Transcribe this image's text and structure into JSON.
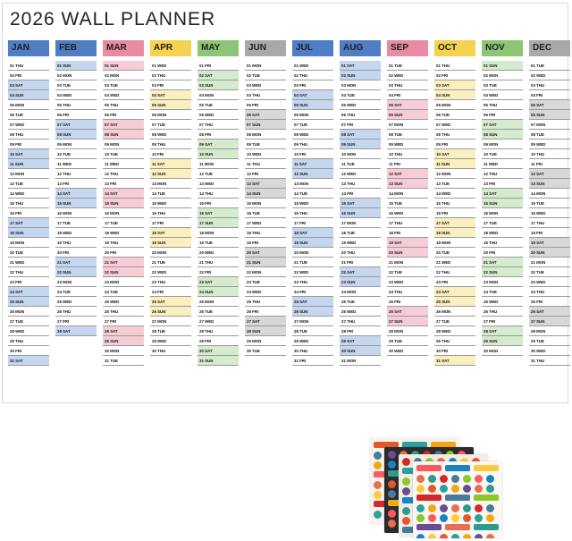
{
  "title": "2026 WALL PLANNER",
  "palette": {
    "blue": "#4f7ec4",
    "blue_tint": "#c5d6ef",
    "pink": "#e98ba2",
    "pink_tint": "#f6cdd6",
    "yellow": "#f3d34f",
    "yellow_tint": "#faefbf",
    "green": "#8cc675",
    "green_tint": "#d5ebcd",
    "gray": "#a9a9a9",
    "gray_tint": "#d8d8d8"
  },
  "months": [
    {
      "name": "JAN",
      "color": "blue"
    },
    {
      "name": "FEB",
      "color": "blue"
    },
    {
      "name": "MAR",
      "color": "pink"
    },
    {
      "name": "APR",
      "color": "yellow"
    },
    {
      "name": "MAY",
      "color": "green"
    },
    {
      "name": "JUN",
      "color": "gray"
    },
    {
      "name": "JUL",
      "color": "blue"
    },
    {
      "name": "AUG",
      "color": "blue"
    },
    {
      "name": "SEP",
      "color": "pink"
    },
    {
      "name": "OCT",
      "color": "yellow"
    },
    {
      "name": "NOV",
      "color": "green"
    },
    {
      "name": "DEC",
      "color": "gray"
    }
  ],
  "year": 2026,
  "weekday_labels": [
    "SUN",
    "MON",
    "TUE",
    "WED",
    "THU",
    "FRI",
    "SAT"
  ],
  "sticker_sheets": {
    "count": 4
  }
}
